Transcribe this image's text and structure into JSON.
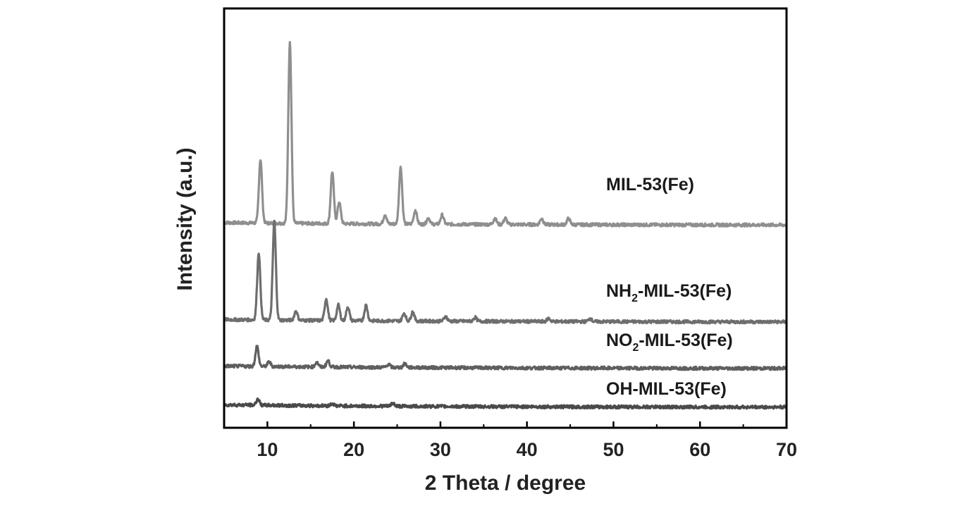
{
  "chart_data": {
    "type": "line",
    "xlabel": "2 Theta / degree",
    "ylabel": "Intensity (a.u.)",
    "xlim": [
      5,
      70
    ],
    "x_ticks": [
      10,
      20,
      30,
      40,
      50,
      60,
      70
    ],
    "y_ticks_shown": false,
    "grid": false,
    "legend": "none (series labelled inline at right)",
    "series": [
      {
        "name": "MIL-53(Fe)",
        "label_main": "MIL-53(Fe)",
        "label_sub": "",
        "label_tail": "",
        "color": "#8f8f8f",
        "offset": 2.35,
        "peaks": [
          {
            "x": 9.2,
            "h": 0.82
          },
          {
            "x": 12.6,
            "h": 2.35
          },
          {
            "x": 17.5,
            "h": 0.67
          },
          {
            "x": 18.3,
            "h": 0.28
          },
          {
            "x": 23.6,
            "h": 0.12
          },
          {
            "x": 25.4,
            "h": 0.73
          },
          {
            "x": 27.1,
            "h": 0.18
          },
          {
            "x": 28.6,
            "h": 0.08
          },
          {
            "x": 30.2,
            "h": 0.12
          },
          {
            "x": 36.3,
            "h": 0.08
          },
          {
            "x": 37.5,
            "h": 0.08
          },
          {
            "x": 41.7,
            "h": 0.08
          },
          {
            "x": 44.8,
            "h": 0.08
          }
        ]
      },
      {
        "name": "NH2-MIL-53(Fe)",
        "label_main": "NH",
        "label_sub": "2",
        "label_tail": "-MIL-53(Fe)",
        "color": "#6e6e6e",
        "offset": 1.1,
        "peaks": [
          {
            "x": 9.0,
            "h": 0.87
          },
          {
            "x": 10.8,
            "h": 1.27
          },
          {
            "x": 13.3,
            "h": 0.12
          },
          {
            "x": 16.8,
            "h": 0.28
          },
          {
            "x": 18.2,
            "h": 0.2
          },
          {
            "x": 19.3,
            "h": 0.18
          },
          {
            "x": 21.4,
            "h": 0.2
          },
          {
            "x": 25.8,
            "h": 0.1
          },
          {
            "x": 26.8,
            "h": 0.12
          },
          {
            "x": 30.6,
            "h": 0.06
          },
          {
            "x": 34.0,
            "h": 0.05
          },
          {
            "x": 42.5,
            "h": 0.04
          },
          {
            "x": 47.3,
            "h": 0.04
          }
        ]
      },
      {
        "name": "NO2-MIL-53(Fe)",
        "label_main": "NO",
        "label_sub": "2",
        "label_tail": "-MIL-53(Fe)",
        "color": "#5f5f5f",
        "offset": 0.5,
        "peaks": [
          {
            "x": 8.8,
            "h": 0.26
          },
          {
            "x": 10.2,
            "h": 0.06
          },
          {
            "x": 15.7,
            "h": 0.06
          },
          {
            "x": 17.0,
            "h": 0.08
          },
          {
            "x": 24.0,
            "h": 0.04
          },
          {
            "x": 25.9,
            "h": 0.05
          }
        ]
      },
      {
        "name": "OH-MIL-53(Fe)",
        "label_main": "OH-MIL-53(Fe)",
        "label_sub": "",
        "label_tail": "",
        "color": "#4a4a4a",
        "offset": 0.0,
        "peaks": [
          {
            "x": 8.9,
            "h": 0.08
          },
          {
            "x": 17.5,
            "h": 0.03
          },
          {
            "x": 24.5,
            "h": 0.04
          }
        ]
      }
    ]
  }
}
